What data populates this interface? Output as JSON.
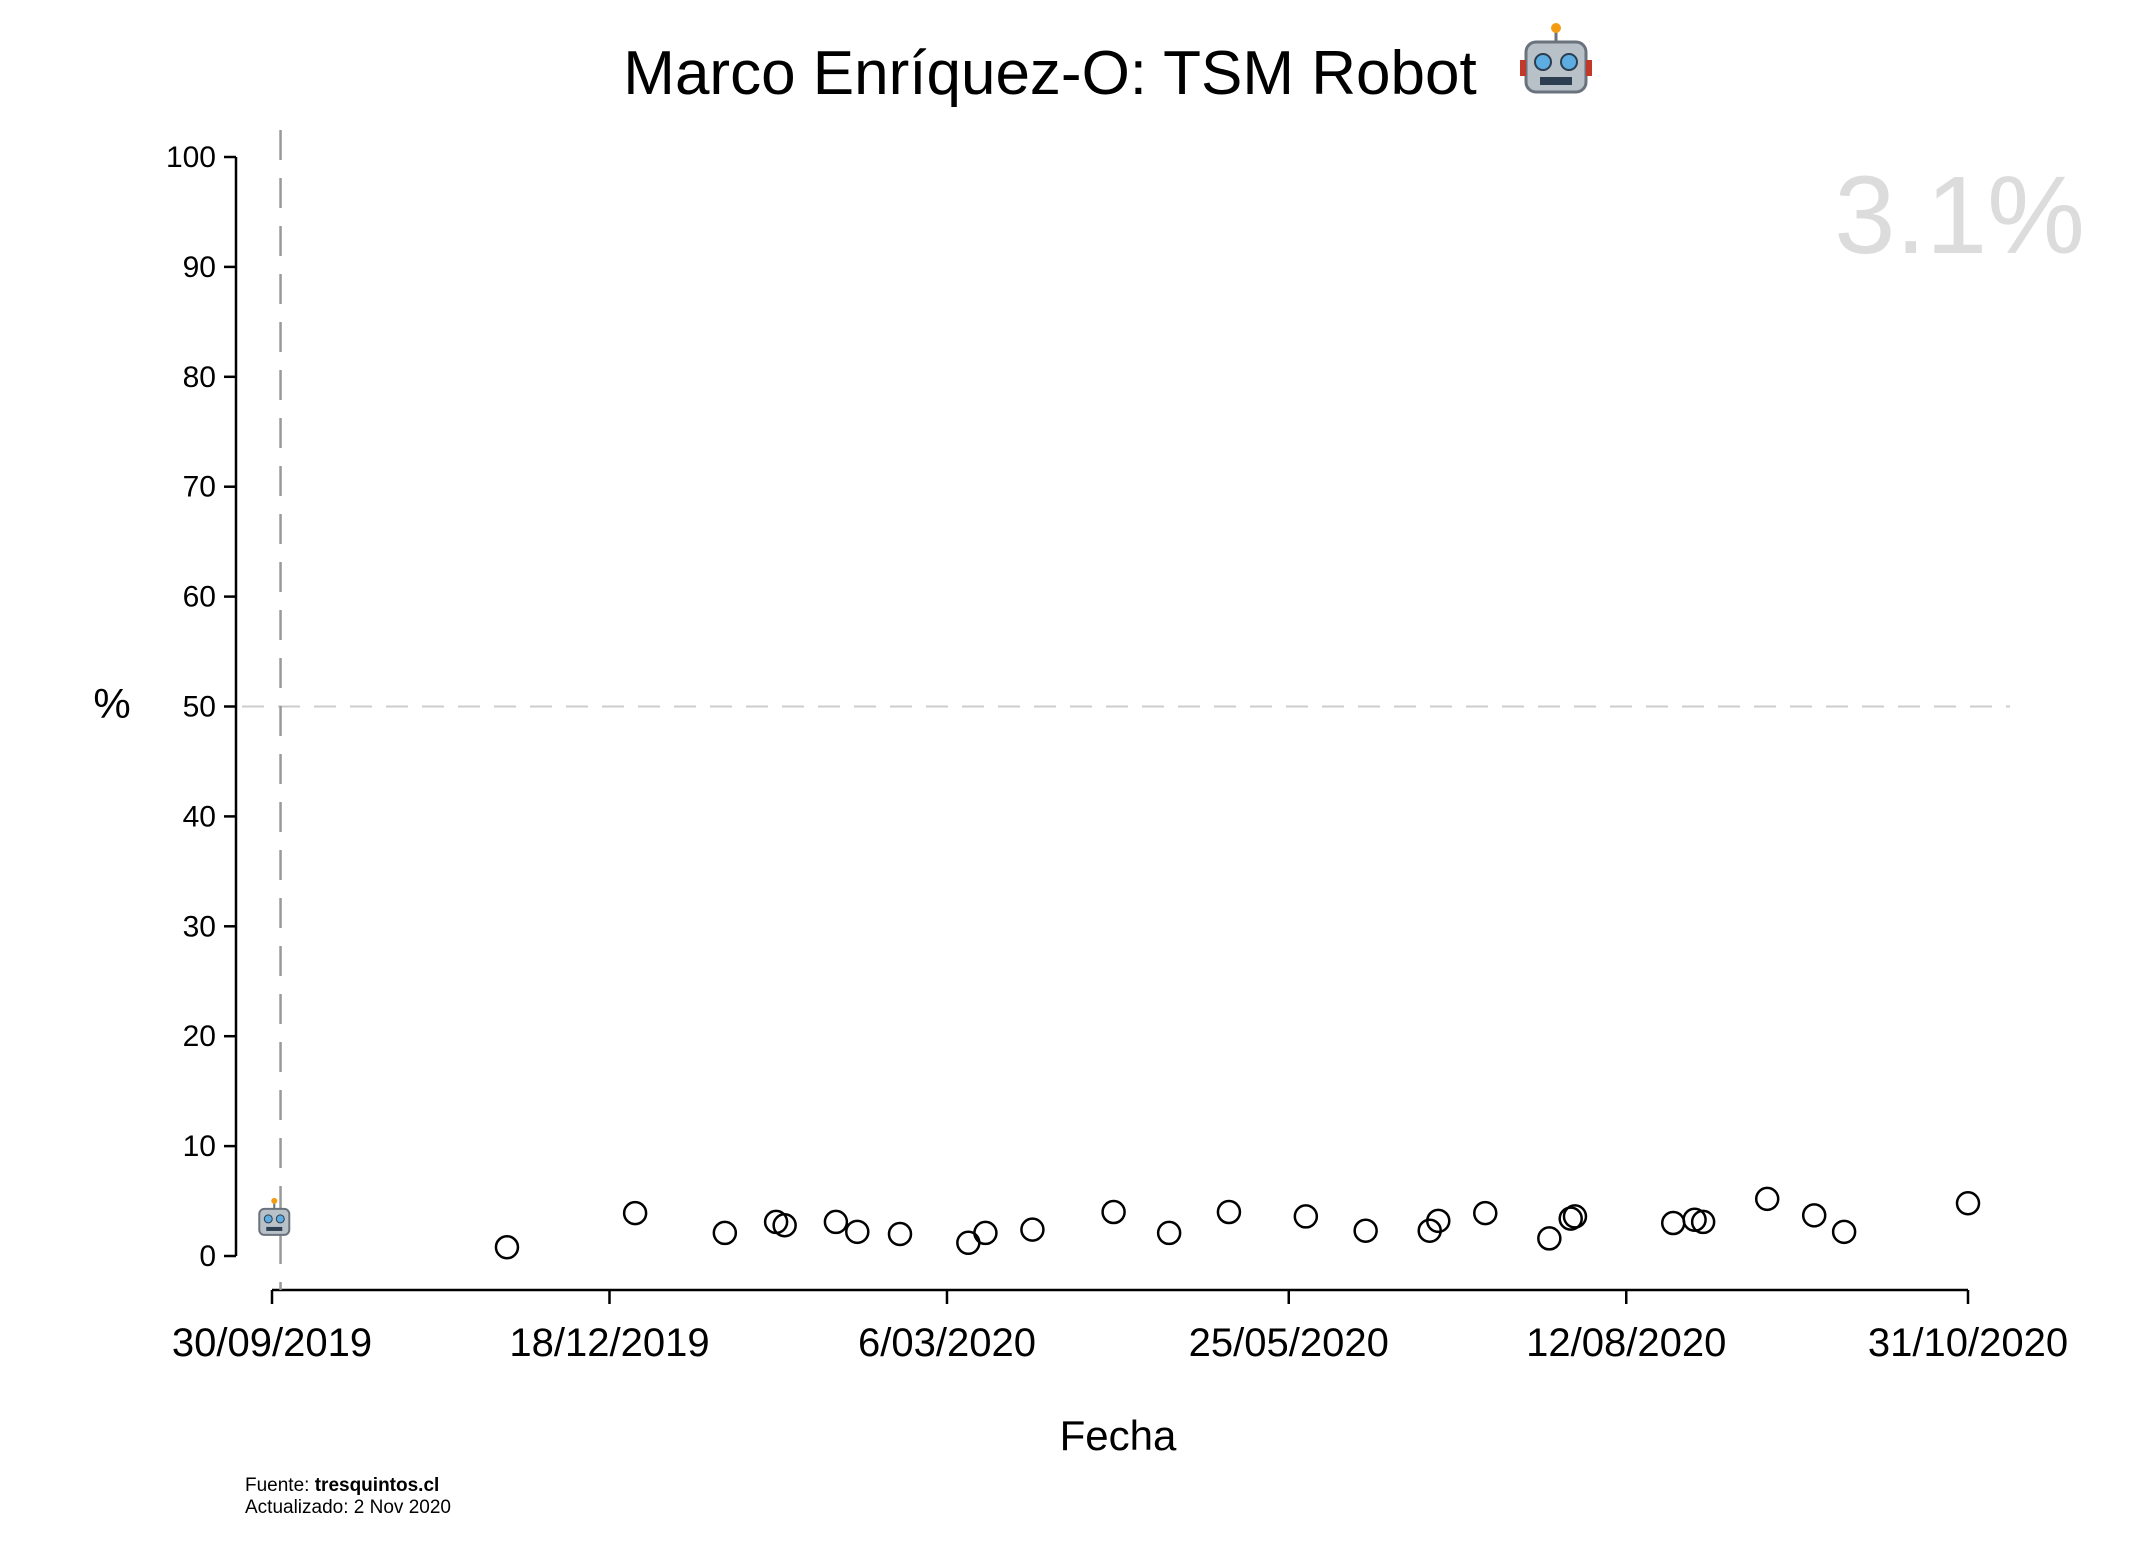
{
  "chart_data": {
    "type": "scatter",
    "title": "Marco Enríquez-O: TSM Robot",
    "title_icon": "robot-face-icon",
    "xlabel": "Fecha",
    "ylabel": "%",
    "ylim": [
      0,
      100
    ],
    "yticks": [
      0,
      10,
      20,
      30,
      40,
      50,
      60,
      70,
      80,
      90,
      100
    ],
    "xlim": [
      "2019-09-30",
      "2020-10-31"
    ],
    "xticks": [
      "2019-09-30",
      "2019-12-18",
      "2020-03-06",
      "2020-05-25",
      "2020-08-12",
      "2020-10-31"
    ],
    "xtick_labels": [
      "30/09/2019",
      "18/12/2019",
      "6/03/2020",
      "25/05/2020",
      "12/08/2020",
      "31/10/2020"
    ],
    "reference_line_y": 50,
    "reference_line_x": "2019-10-02",
    "current_value_label": "3.1%",
    "current_marker": {
      "x": "2019-10-01",
      "y": 3.1,
      "icon": "robot-face-icon"
    },
    "grid": false,
    "colors": {
      "points": "#000000",
      "reference": "#b0b0b0",
      "value_label": "#dcdcdc"
    },
    "points": [
      {
        "x": "2019-11-24",
        "y": 0.8
      },
      {
        "x": "2019-12-24",
        "y": 3.9
      },
      {
        "x": "2020-01-14",
        "y": 2.1
      },
      {
        "x": "2020-01-26",
        "y": 3.1
      },
      {
        "x": "2020-01-28",
        "y": 2.8
      },
      {
        "x": "2020-02-09",
        "y": 3.1
      },
      {
        "x": "2020-02-14",
        "y": 2.2
      },
      {
        "x": "2020-02-24",
        "y": 2.0
      },
      {
        "x": "2020-03-11",
        "y": 1.2
      },
      {
        "x": "2020-03-15",
        "y": 2.1
      },
      {
        "x": "2020-03-26",
        "y": 2.4
      },
      {
        "x": "2020-04-14",
        "y": 4.0
      },
      {
        "x": "2020-04-27",
        "y": 2.1
      },
      {
        "x": "2020-05-11",
        "y": 4.0
      },
      {
        "x": "2020-05-29",
        "y": 3.6
      },
      {
        "x": "2020-06-12",
        "y": 2.3
      },
      {
        "x": "2020-06-27",
        "y": 2.3
      },
      {
        "x": "2020-06-29",
        "y": 3.2
      },
      {
        "x": "2020-07-10",
        "y": 3.9
      },
      {
        "x": "2020-07-25",
        "y": 1.6
      },
      {
        "x": "2020-07-30",
        "y": 3.4
      },
      {
        "x": "2020-07-31",
        "y": 3.6
      },
      {
        "x": "2020-08-23",
        "y": 3.0
      },
      {
        "x": "2020-08-28",
        "y": 3.3
      },
      {
        "x": "2020-08-30",
        "y": 3.1
      },
      {
        "x": "2020-09-14",
        "y": 5.2
      },
      {
        "x": "2020-09-25",
        "y": 3.7
      },
      {
        "x": "2020-10-02",
        "y": 2.2
      },
      {
        "x": "2020-10-31",
        "y": 4.8
      }
    ]
  },
  "footer": {
    "source_prefix": "Fuente: ",
    "source_name": "tresquintos.cl",
    "updated": "Actualizado: 2 Nov 2020"
  }
}
